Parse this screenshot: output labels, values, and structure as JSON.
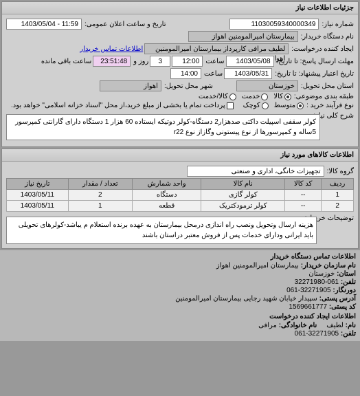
{
  "main_panel_title": "جزئیات اطلاعات نیاز",
  "header": {
    "req_number_label": "شماره نیاز:",
    "req_number": "11030059340000349",
    "pub_date_label": "تاریخ و ساعت اعلان عمومی:",
    "pub_date": "11:59 - 1403/05/04",
    "buyer_org_label": "نام دستگاه خریدار:",
    "buyer_org": "بیمارستان امیرالمومنین اهواز",
    "requester_label": "ایجاد کننده درخواست:",
    "requester": "لطیف مرافی کارپرداز بیمارستان امیرالمومنین اهواز",
    "buyer_contact_link": "اطلاعات تماس خریدار",
    "respond_deadline_label": "مهلت ارسال پاسخ: تا تاریخ:",
    "respond_date": "1403/05/08",
    "respond_time_label": "ساعت",
    "respond_time": "12:00",
    "remain_days_val": "3",
    "remain_days_label": "روز و",
    "remain_time": "23:51:48",
    "remain_label": "ساعت باقی مانده",
    "validity_label": "تاریخ اعتبار پیشنهاد: تا تاریخ:",
    "validity_date": "1403/05/31",
    "validity_time_label": "ساعت",
    "validity_time": "14:00",
    "province_label": "استان محل تحویل:",
    "province": "خوزستان",
    "city_label": "شهر محل تحویل:",
    "city": "اهواز",
    "category_label": "طبقه بندی موضوعی:",
    "cat_options": {
      "a": "کالا",
      "b": "خدمت",
      "c": "کالا/خدمت"
    },
    "purchase_type_label": "نوع فرآیند خرید :",
    "pt_options": {
      "a": "متوسط",
      "b": "کوچک"
    },
    "checkbox_label": "پرداخت تمام یا بخشی از مبلغ خرید،از محل \"اسناد خزانه اسلامی\" خواهد بود."
  },
  "desc": {
    "label": "شرح کلی نیاز:",
    "text": "کولر سقفی اسپیلت داکتی صدهزار2 دستگاه-کولر دوتیکه ایستاده 60 هزار 1 دستگاه دارای گارانتی کمپرسور 5ساله و کمپرسورها از نوع پیستونی وگازاز نوع r22"
  },
  "goods": {
    "panel_title": "اطلاعات کالاهای مورد نیاز",
    "group_label": "گروه کالا:",
    "group_value": "تجهیزات خانگی، اداری و صنعتی",
    "columns": [
      "ردیف",
      "کد کالا",
      "نام کالا",
      "واحد شمارش",
      "تعداد / مقدار",
      "تاریخ نیاز"
    ],
    "rows": [
      [
        "1",
        "--",
        "کولر گازی",
        "دستگاه",
        "2",
        "1403/05/11"
      ],
      [
        "2",
        "--",
        "کولر ترمودکتریک",
        "قطعه",
        "1",
        "1403/05/11"
      ]
    ]
  },
  "note": {
    "label": "توضیحات خریدار:",
    "text": "هزینه ارسال وتحویل ونصب راه اندازی درمحل بیمارستان به عهده برنده استعلام م یباشد-کولرهای تحویلی باید ایرانی ودارای خدمات پس از فروش معتبر دراستان باشند"
  },
  "contact": {
    "header": "اطلاعات تماس دستگاه خریدار",
    "org_label": "نام سازمان خریدار:",
    "org": "بیمارستان امیرالمومنین اهواز",
    "province_label": "استان:",
    "province": "خوزستان",
    "phone_label": "تلفن:",
    "phone": "061-32271980",
    "fax_label": "دورنگار:",
    "fax": "32271905-061",
    "postal_label": "آدرس پستی:",
    "postal": "سپیدار خیابان شهید رجایی بیمارستان امیرالمومنین",
    "zip_label": "کد پستی:",
    "zip": "1569661777",
    "creator_header": "اطلاعات ایجاد کننده درخواست",
    "creator_name_label": "نام:",
    "creator_name": "لطیف",
    "creator_lname_label": "نام خانوادگی:",
    "creator_lname": "مرافی",
    "creator_phone_label": "تلفن:",
    "creator_phone": "32271905-061"
  }
}
